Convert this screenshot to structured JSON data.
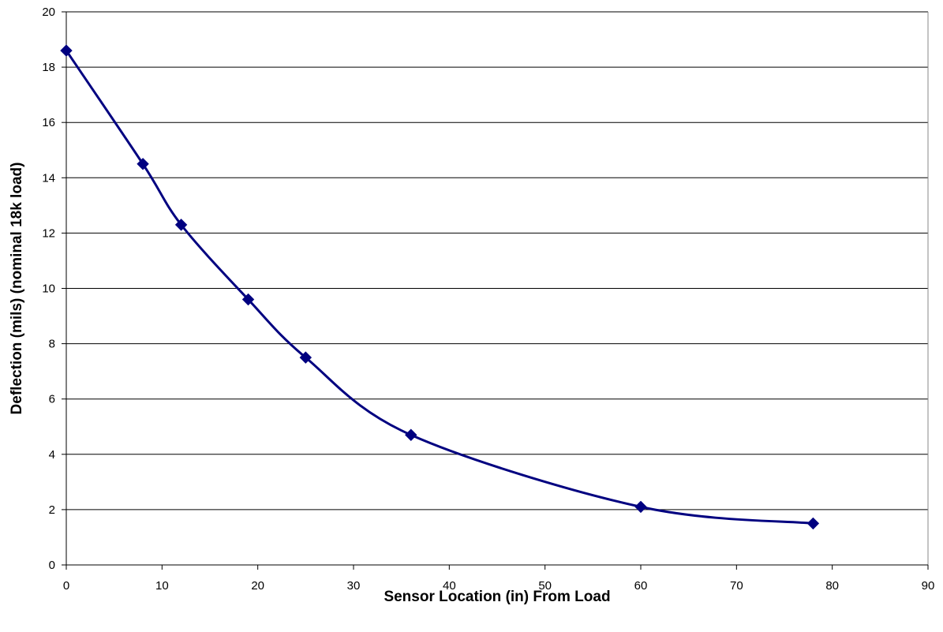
{
  "chart_data": {
    "type": "line",
    "title": "",
    "xlabel": "Sensor Location (in) From Load",
    "ylabel": "Deflection (mils) (nominal 18k load)",
    "xlim": [
      0,
      90
    ],
    "ylim": [
      0,
      20
    ],
    "x_ticks": [
      "0",
      "10",
      "20",
      "30",
      "40",
      "50",
      "60",
      "70",
      "80",
      "90"
    ],
    "y_ticks": [
      "0",
      "2",
      "4",
      "6",
      "8",
      "10",
      "12",
      "14",
      "16",
      "18",
      "20"
    ],
    "grid": "horizontal",
    "legend": "none",
    "line_style": "smoothed",
    "marker": "diamond",
    "series": [
      {
        "color": "#000080",
        "x": [
          0,
          8,
          12,
          19,
          25,
          36,
          60,
          78
        ],
        "y": [
          18.6,
          14.5,
          12.3,
          9.6,
          7.5,
          4.7,
          2.1,
          1.5
        ]
      }
    ]
  }
}
